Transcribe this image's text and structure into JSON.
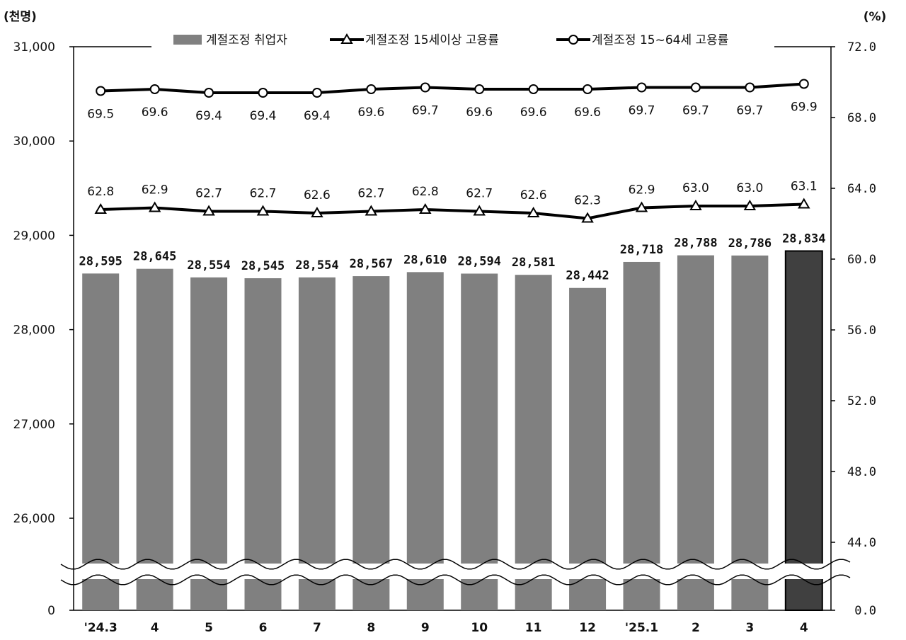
{
  "chart_data": {
    "type": "bar",
    "y_unit_left": "(천명)",
    "y_unit_right": "(%)",
    "categories": [
      "'24.3",
      "4",
      "5",
      "6",
      "7",
      "8",
      "9",
      "10",
      "11",
      "12",
      "'25.1",
      "2",
      "3",
      "4"
    ],
    "yaxis_left": {
      "ticks": [
        "0",
        "26,000",
        "27,000",
        "28,000",
        "29,000",
        "30,000",
        "31,000"
      ],
      "ylim": [
        26000,
        31000
      ],
      "axis_break": true
    },
    "yaxis_right": {
      "ticks": [
        "0.0",
        "44.0",
        "48.0",
        "52.0",
        "56.0",
        "60.0",
        "64.0",
        "68.0",
        "72.0"
      ],
      "ylim": [
        44,
        72
      ],
      "axis_break": true
    },
    "bars": {
      "name": "계절조정 취업자",
      "values": [
        28595,
        28645,
        28554,
        28545,
        28554,
        28567,
        28610,
        28594,
        28581,
        28442,
        28718,
        28788,
        28786,
        28834
      ],
      "labels": [
        "28,595",
        "28,645",
        "28,554",
        "28,545",
        "28,554",
        "28,567",
        "28,610",
        "28,594",
        "28,581",
        "28,442",
        "28,718",
        "28,788",
        "28,786",
        "28,834"
      ],
      "color": "#808080",
      "highlight_color": "#404040",
      "highlight_index": 13
    },
    "series": [
      {
        "name": "계절조정 15세이상 고용률",
        "marker": "triangle",
        "values": [
          62.8,
          62.9,
          62.7,
          62.7,
          62.6,
          62.7,
          62.8,
          62.7,
          62.6,
          62.3,
          62.9,
          63.0,
          63.0,
          63.1
        ],
        "labels": [
          "62.8",
          "62.9",
          "62.7",
          "62.7",
          "62.6",
          "62.7",
          "62.8",
          "62.7",
          "62.6",
          "62.3",
          "62.9",
          "63.0",
          "63.0",
          "63.1"
        ]
      },
      {
        "name": "계절조정 15~64세 고용률",
        "marker": "circle",
        "values": [
          69.5,
          69.6,
          69.4,
          69.4,
          69.4,
          69.6,
          69.7,
          69.6,
          69.6,
          69.6,
          69.7,
          69.7,
          69.7,
          69.9
        ],
        "labels": [
          "69.5",
          "69.6",
          "69.4",
          "69.4",
          "69.4",
          "69.6",
          "69.7",
          "69.6",
          "69.6",
          "69.6",
          "69.7",
          "69.7",
          "69.7",
          "69.9"
        ]
      }
    ],
    "legend_position": "top-center",
    "grid": false
  }
}
